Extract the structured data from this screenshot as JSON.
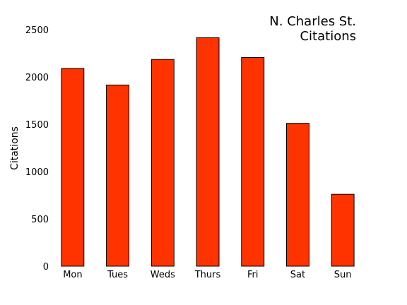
{
  "chart_data": {
    "type": "bar",
    "title": [
      "N. Charles St.",
      "Citations"
    ],
    "xlabel": "",
    "ylabel": "Citations",
    "categories": [
      "Mon",
      "Tues",
      "Weds",
      "Thurs",
      "Fri",
      "Sat",
      "Sun"
    ],
    "values": [
      2090,
      1915,
      2185,
      2415,
      2205,
      1510,
      760
    ],
    "ylim": [
      0,
      2500
    ],
    "yticks": [
      "0",
      "500",
      "1000",
      "1500",
      "2000",
      "2500"
    ],
    "grid": false,
    "bar_color": "#ff3300",
    "bar_edge_color": "#000000"
  }
}
